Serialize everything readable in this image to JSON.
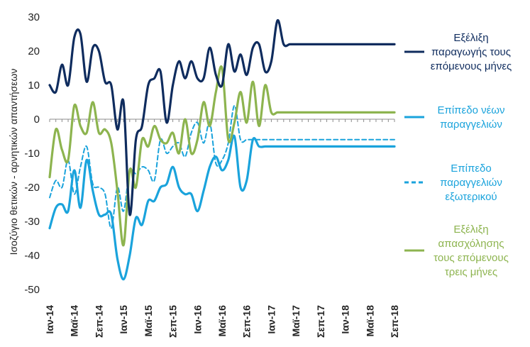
{
  "chart_data": {
    "type": "line",
    "title": "",
    "xlabel": "",
    "ylabel": "Ισοζύγιο θετικών - αρνητικών απαντήσεων",
    "ylim": [
      -50,
      30
    ],
    "yticks": [
      30,
      20,
      10,
      0,
      -10,
      -20,
      -30,
      -40,
      -50
    ],
    "grid": false,
    "legend_position": "right",
    "x_tick_labels": [
      "Ιαν-14",
      "Μαϊ-14",
      "Σεπ-14",
      "Ιαν-15",
      "Μαϊ-15",
      "Σεπ-15",
      "Ιαν-16",
      "Μαϊ-16",
      "Σεπ-16",
      "Ιαν-17",
      "Μαϊ-17",
      "Σεπ-17",
      "Ιαν-18",
      "Μαϊ-18",
      "Σεπ-18"
    ],
    "x_tick_index": [
      0,
      4,
      8,
      12,
      16,
      20,
      24,
      28,
      32,
      36,
      40,
      44,
      48,
      52,
      56
    ],
    "n_points": 57,
    "series": [
      {
        "name": "Εξέλιξη παραγωγής τους επόμενους μήνες",
        "legend_lines": [
          "Εξέλιξη",
          "παραγωγής τους",
          "επόμενους μήνες"
        ],
        "color": "#0f2c5e",
        "dash": "none",
        "values": [
          10,
          8,
          16,
          10,
          24,
          25,
          11,
          21,
          20,
          11,
          10,
          -3,
          5,
          -28,
          -6,
          -2,
          10,
          12,
          14,
          -1,
          10,
          17,
          12,
          17,
          12,
          12,
          21,
          13,
          10,
          22,
          14,
          19,
          13,
          21,
          22,
          14,
          17,
          29,
          22,
          22,
          22,
          22,
          22,
          22,
          22,
          22,
          22,
          22,
          22,
          22,
          22,
          22,
          22,
          22,
          22,
          22,
          22
        ]
      },
      {
        "name": "Επίπεδο νέων παραγγελιών",
        "legend_lines": [
          "Επίπεδο νέων",
          "παραγγελιών"
        ],
        "color": "#1aa3dc",
        "dash": "none",
        "values": [
          -32,
          -26,
          -25,
          -27,
          -15,
          -26,
          -12,
          -21,
          -28,
          -28,
          -28,
          -41,
          -47,
          -40,
          -29,
          -31,
          -24,
          -24,
          -20,
          -19,
          -14,
          -20,
          -22,
          -22,
          -27,
          -21,
          -14,
          -11,
          -15,
          -12,
          -5,
          -20,
          -18,
          -6,
          -8,
          -8,
          -8,
          -8,
          -8,
          -8,
          -8,
          -8,
          -8,
          -8,
          -8,
          -8,
          -8,
          -8,
          -8,
          -8,
          -8,
          -8,
          -8,
          -8,
          -8,
          -8,
          -8
        ]
      },
      {
        "name": "Επίπεδο παραγγελιών εξωτερικού",
        "legend_lines": [
          "Επίπεδο",
          "παραγγελιών",
          "εξωτερικού"
        ],
        "color": "#1aa3dc",
        "dash": "dashed",
        "values": [
          -23,
          -18,
          -20,
          -12,
          -22,
          -14,
          -8,
          -19,
          -20,
          -22,
          -32,
          -20,
          -27,
          -15,
          -16,
          -14,
          -15,
          -18,
          -6,
          -10,
          -8,
          -7,
          -11,
          -4,
          -1,
          -7,
          -1,
          -13,
          -12,
          -7,
          4,
          -6,
          -6,
          -6,
          -6,
          -6,
          -6,
          -6,
          -6,
          -6,
          -6,
          -6,
          -6,
          -6,
          -6,
          -6,
          -6,
          -6,
          -6,
          -6,
          -6,
          -6,
          -6,
          -6,
          -6,
          -6,
          -6
        ]
      },
      {
        "name": "Εξέλιξη απασχόλησης τους επόμενους τρεις μήνες",
        "legend_lines": [
          "Εξέλιξη",
          "απασχόλησης",
          "τους επόμενους",
          "τρεις μήνες"
        ],
        "color": "#8db44f",
        "dash": "none",
        "values": [
          -17,
          -3,
          -9,
          -12,
          4,
          -2,
          -4,
          5,
          -4,
          -3,
          -7,
          -21,
          -37,
          -15,
          -20,
          -6,
          -8,
          -2,
          -6,
          -7,
          -4,
          -10,
          0,
          -10,
          -6,
          5,
          -2,
          8,
          15,
          -6,
          -1,
          8,
          -1,
          11,
          -2,
          10,
          2,
          2,
          2,
          2,
          2,
          2,
          2,
          2,
          2,
          2,
          2,
          2,
          2,
          2,
          2,
          2,
          2,
          2,
          2,
          2,
          2
        ]
      }
    ]
  }
}
